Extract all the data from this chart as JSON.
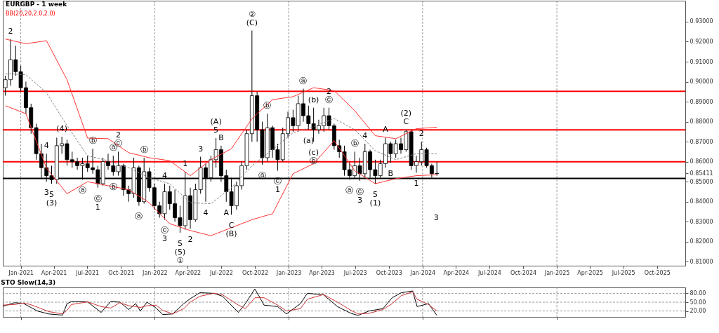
{
  "chart_data": [
    {
      "type": "candlestick",
      "title": "EURGBP - 1 week",
      "subtitle": "BB(20,20,2.0,2.0)",
      "x": [
        "2020-11-20",
        "2020-12-04",
        "2020-12-18",
        "2021-01-01",
        "2021-01-15",
        "2021-01-29",
        "2021-02-12",
        "2021-02-26",
        "2021-03-12",
        "2021-03-26",
        "2021-04-09",
        "2021-04-23",
        "2021-05-07",
        "2021-05-21",
        "2021-06-04",
        "2021-06-18",
        "2021-07-02",
        "2021-07-16",
        "2021-07-30",
        "2021-08-13",
        "2021-08-27",
        "2021-09-10",
        "2021-09-24",
        "2021-10-08",
        "2021-10-22",
        "2021-11-05",
        "2021-11-19",
        "2021-12-03",
        "2021-12-17",
        "2021-12-31",
        "2022-01-14",
        "2022-01-28",
        "2022-02-11",
        "2022-02-25",
        "2022-03-11",
        "2022-03-25",
        "2022-04-08",
        "2022-04-22",
        "2022-05-06",
        "2022-05-20",
        "2022-06-03",
        "2022-06-17",
        "2022-07-01",
        "2022-07-15",
        "2022-07-29",
        "2022-08-12",
        "2022-08-26",
        "2022-09-09",
        "2022-09-23",
        "2022-10-07",
        "2022-10-21",
        "2022-11-04",
        "2022-11-18",
        "2022-12-02",
        "2022-12-16",
        "2022-12-30",
        "2023-01-13",
        "2023-01-27",
        "2023-02-10",
        "2023-02-24",
        "2023-03-10",
        "2023-03-24",
        "2023-04-07",
        "2023-04-21",
        "2023-05-05",
        "2023-05-19",
        "2023-06-02",
        "2023-06-16",
        "2023-06-30",
        "2023-07-14",
        "2023-07-28",
        "2023-08-11",
        "2023-08-25",
        "2023-09-08",
        "2023-09-22",
        "2023-10-06",
        "2023-10-20",
        "2023-11-03",
        "2023-11-17",
        "2023-12-01",
        "2023-12-15",
        "2023-12-29",
        "2024-01-12",
        "2024-01-26",
        "2024-02-09"
      ],
      "ohlc": [
        [
          0.897,
          0.903,
          0.893,
          0.901
        ],
        [
          0.901,
          0.9213,
          0.898,
          0.911
        ],
        [
          0.911,
          0.918,
          0.903,
          0.905
        ],
        [
          0.905,
          0.908,
          0.895,
          0.897
        ],
        [
          0.897,
          0.9,
          0.884,
          0.887
        ],
        [
          0.887,
          0.889,
          0.874,
          0.877
        ],
        [
          0.877,
          0.879,
          0.861,
          0.864
        ],
        [
          0.864,
          0.869,
          0.852,
          0.857
        ],
        [
          0.857,
          0.864,
          0.85,
          0.853
        ],
        [
          0.853,
          0.858,
          0.849,
          0.851
        ],
        [
          0.851,
          0.872,
          0.849,
          0.868
        ],
        [
          0.868,
          0.8725,
          0.864,
          0.869
        ],
        [
          0.869,
          0.871,
          0.858,
          0.861
        ],
        [
          0.861,
          0.865,
          0.857,
          0.86
        ],
        [
          0.86,
          0.862,
          0.856,
          0.858
        ],
        [
          0.858,
          0.862,
          0.851,
          0.859
        ],
        [
          0.859,
          0.863,
          0.855,
          0.857
        ],
        [
          0.857,
          0.8665,
          0.854,
          0.856
        ],
        [
          0.856,
          0.858,
          0.847,
          0.849
        ],
        [
          0.849,
          0.862,
          0.848,
          0.86
        ],
        [
          0.86,
          0.864,
          0.856,
          0.858
        ],
        [
          0.858,
          0.863,
          0.853,
          0.855
        ],
        [
          0.855,
          0.865,
          0.853,
          0.858
        ],
        [
          0.858,
          0.859,
          0.843,
          0.846
        ],
        [
          0.846,
          0.848,
          0.84,
          0.844
        ],
        [
          0.844,
          0.862,
          0.842,
          0.857
        ],
        [
          0.857,
          0.858,
          0.838,
          0.84
        ],
        [
          0.84,
          0.862,
          0.839,
          0.855
        ],
        [
          0.855,
          0.857,
          0.845,
          0.847
        ],
        [
          0.847,
          0.849,
          0.836,
          0.838
        ],
        [
          0.838,
          0.84,
          0.832,
          0.834
        ],
        [
          0.834,
          0.849,
          0.831,
          0.845
        ],
        [
          0.845,
          0.848,
          0.836,
          0.839
        ],
        [
          0.839,
          0.846,
          0.83,
          0.832
        ],
        [
          0.832,
          0.838,
          0.8245,
          0.828
        ],
        [
          0.828,
          0.855,
          0.826,
          0.843
        ],
        [
          0.843,
          0.847,
          0.8265,
          0.831
        ],
        [
          0.831,
          0.849,
          0.83,
          0.846
        ],
        [
          0.846,
          0.8625,
          0.844,
          0.857
        ],
        [
          0.857,
          0.859,
          0.84,
          0.852
        ],
        [
          0.852,
          0.863,
          0.85,
          0.861
        ],
        [
          0.861,
          0.8718,
          0.857,
          0.866
        ],
        [
          0.866,
          0.868,
          0.85,
          0.853
        ],
        [
          0.853,
          0.856,
          0.84,
          0.845
        ],
        [
          0.845,
          0.852,
          0.8335,
          0.838
        ],
        [
          0.838,
          0.85,
          0.836,
          0.848
        ],
        [
          0.848,
          0.86,
          0.846,
          0.858
        ],
        [
          0.858,
          0.876,
          0.856,
          0.874
        ],
        [
          0.874,
          0.9256,
          0.87,
          0.893
        ],
        [
          0.893,
          0.895,
          0.87,
          0.876
        ],
        [
          0.876,
          0.88,
          0.8585,
          0.862
        ],
        [
          0.862,
          0.884,
          0.86,
          0.877
        ],
        [
          0.877,
          0.878,
          0.862,
          0.866
        ],
        [
          0.866,
          0.869,
          0.8555,
          0.861
        ],
        [
          0.861,
          0.877,
          0.86,
          0.874
        ],
        [
          0.874,
          0.885,
          0.872,
          0.882
        ],
        [
          0.882,
          0.886,
          0.875,
          0.878
        ],
        [
          0.878,
          0.893,
          0.876,
          0.889
        ],
        [
          0.889,
          0.8965,
          0.88,
          0.883
        ],
        [
          0.883,
          0.888,
          0.876,
          0.879
        ],
        [
          0.879,
          0.887,
          0.87,
          0.876
        ],
        [
          0.876,
          0.881,
          0.874,
          0.878
        ],
        [
          0.878,
          0.887,
          0.875,
          0.883
        ],
        [
          0.883,
          0.887,
          0.876,
          0.878
        ],
        [
          0.878,
          0.879,
          0.866,
          0.868
        ],
        [
          0.868,
          0.871,
          0.862,
          0.865
        ],
        [
          0.865,
          0.868,
          0.853,
          0.856
        ],
        [
          0.856,
          0.86,
          0.851,
          0.853
        ],
        [
          0.853,
          0.865,
          0.8515,
          0.858
        ],
        [
          0.858,
          0.862,
          0.8505,
          0.854
        ],
        [
          0.854,
          0.869,
          0.852,
          0.865
        ],
        [
          0.865,
          0.866,
          0.852,
          0.856
        ],
        [
          0.856,
          0.861,
          0.849,
          0.853
        ],
        [
          0.853,
          0.861,
          0.852,
          0.859
        ],
        [
          0.859,
          0.872,
          0.857,
          0.869
        ],
        [
          0.869,
          0.87,
          0.8595,
          0.864
        ],
        [
          0.864,
          0.871,
          0.862,
          0.869
        ],
        [
          0.869,
          0.872,
          0.864,
          0.866
        ],
        [
          0.866,
          0.876,
          0.865,
          0.875
        ],
        [
          0.875,
          0.876,
          0.856,
          0.858
        ],
        [
          0.858,
          0.863,
          0.8545,
          0.86
        ],
        [
          0.86,
          0.87,
          0.858,
          0.866
        ],
        [
          0.866,
          0.867,
          0.857,
          0.858
        ],
        [
          0.858,
          0.859,
          0.852,
          0.854
        ],
        [
          0.854,
          0.86,
          0.853,
          0.85411
        ]
      ],
      "series": [
        {
          "type": "line",
          "color": "#ff3333",
          "line_style": "solid",
          "x": [
            "2020-11-20",
            "2021-01-15",
            "2021-03-12",
            "2021-05-07",
            "2021-07-02",
            "2021-08-27",
            "2021-10-22",
            "2021-12-17",
            "2022-02-11",
            "2022-04-08",
            "2022-06-03",
            "2022-07-29",
            "2022-09-23",
            "2022-11-18",
            "2023-01-13",
            "2023-03-10",
            "2023-05-05",
            "2023-06-30",
            "2023-08-25",
            "2023-10-20",
            "2023-12-15",
            "2024-02-09"
          ],
          "values": [
            0.9213,
            0.919,
            0.9205,
            0.901,
            0.8718,
            0.8715,
            0.8645,
            0.862,
            0.8605,
            0.853,
            0.861,
            0.8665,
            0.8815,
            0.891,
            0.8925,
            0.897,
            0.8955,
            0.8855,
            0.873,
            0.8715,
            0.8765,
            0.8772
          ]
        },
        {
          "type": "line",
          "color": "#808080",
          "line_style": "dashed",
          "x": [
            "2020-11-20",
            "2021-01-15",
            "2021-03-12",
            "2021-05-07",
            "2021-07-02",
            "2021-08-27",
            "2021-10-22",
            "2021-12-17",
            "2022-02-11",
            "2022-04-08",
            "2022-06-03",
            "2022-07-29",
            "2022-09-23",
            "2022-11-18",
            "2023-01-13",
            "2023-03-10",
            "2023-05-05",
            "2023-06-30",
            "2023-08-25",
            "2023-10-20",
            "2023-12-15",
            "2024-02-09"
          ],
          "values": [
            0.904,
            0.9035,
            0.8945,
            0.878,
            0.863,
            0.8605,
            0.857,
            0.852,
            0.849,
            0.8395,
            0.839,
            0.847,
            0.858,
            0.866,
            0.8745,
            0.8775,
            0.8816,
            0.876,
            0.8655,
            0.861,
            0.864,
            0.864
          ]
        },
        {
          "type": "line",
          "color": "#ff3333",
          "line_style": "solid",
          "x": [
            "2020-11-20",
            "2021-01-15",
            "2021-03-12",
            "2021-05-07",
            "2021-07-02",
            "2021-08-27",
            "2021-10-22",
            "2021-12-17",
            "2022-02-11",
            "2022-04-08",
            "2022-06-03",
            "2022-07-29",
            "2022-09-23",
            "2022-11-18",
            "2023-01-13",
            "2023-03-10",
            "2023-05-05",
            "2023-06-30",
            "2023-08-25",
            "2023-10-20",
            "2023-12-15",
            "2024-02-09"
          ],
          "values": [
            0.888,
            0.884,
            0.8568,
            0.844,
            0.85,
            0.848,
            0.846,
            0.8395,
            0.829,
            0.8256,
            0.823,
            0.827,
            0.831,
            0.834,
            0.854,
            0.859,
            0.8705,
            0.8555,
            0.849,
            0.8515,
            0.853,
            0.8535
          ]
        }
      ],
      "xlim": [
        "2020-11-13",
        "2025-12-17"
      ],
      "ylim": [
        0.808,
        0.9405
      ],
      "xticks": [
        {
          "value": "2021-01-01",
          "label": "Jan-2021"
        },
        {
          "value": "2021-04-01",
          "label": "Apr-2021"
        },
        {
          "value": "2021-07-01",
          "label": "Jul-2021"
        },
        {
          "value": "2021-10-01",
          "label": "Oct-2021"
        },
        {
          "value": "2022-01-01",
          "label": "Jan-2022"
        },
        {
          "value": "2022-04-01",
          "label": "Apr-2022"
        },
        {
          "value": "2022-07-01",
          "label": "Jul-2022"
        },
        {
          "value": "2022-10-01",
          "label": "Oct-2022"
        },
        {
          "value": "2023-01-01",
          "label": "Jan-2023"
        },
        {
          "value": "2023-04-01",
          "label": "Apr-2023"
        },
        {
          "value": "2023-07-01",
          "label": "Jul-2023"
        },
        {
          "value": "2023-10-01",
          "label": "Oct-2023"
        },
        {
          "value": "2024-01-01",
          "label": "Jan-2024"
        },
        {
          "value": "2024-04-01",
          "label": "Apr-2024"
        },
        {
          "value": "2024-07-01",
          "label": "Jul-2024"
        },
        {
          "value": "2024-10-01",
          "label": "Oct-2024"
        },
        {
          "value": "2025-01-01",
          "label": "Jan-2025"
        },
        {
          "value": "2025-04-01",
          "label": "Apr-2025"
        },
        {
          "value": "2025-07-01",
          "label": "Jul-2025"
        },
        {
          "value": "2025-10-01",
          "label": "Oct-2025"
        }
      ],
      "yticks": [
        {
          "value": 0.81,
          "label": "0.81000"
        },
        {
          "value": 0.82,
          "label": "0.82000"
        },
        {
          "value": 0.83,
          "label": "0.83000"
        },
        {
          "value": 0.84,
          "label": "0.84000"
        },
        {
          "value": 0.85,
          "label": "0.85000"
        },
        {
          "value": 0.85411,
          "label": "0.85411"
        },
        {
          "value": 0.86,
          "label": "0.86000"
        },
        {
          "value": 0.87,
          "label": "0.87000"
        },
        {
          "value": 0.88,
          "label": "0.88000"
        },
        {
          "value": 0.89,
          "label": "0.89000"
        },
        {
          "value": 0.9,
          "label": "0.90000"
        },
        {
          "value": 0.91,
          "label": "0.91000"
        },
        {
          "value": 0.92,
          "label": "0.92000"
        },
        {
          "value": 0.93,
          "label": "0.93000"
        }
      ],
      "ref_lines": [
        {
          "axis": "y",
          "value": 0.8952,
          "color": "#ff0000",
          "line_style": "solid"
        },
        {
          "axis": "y",
          "value": 0.8759,
          "color": "#ff0000",
          "line_style": "solid"
        },
        {
          "axis": "y",
          "value": 0.86,
          "color": "#ff0000",
          "line_style": "solid"
        },
        {
          "axis": "y",
          "value": 0.8516,
          "color": "#000000",
          "line_style": "solid"
        },
        {
          "axis": "x",
          "value": "2021-01-01",
          "color": "#808080",
          "line_style": "dashed"
        },
        {
          "axis": "x",
          "value": "2022-01-01",
          "color": "#808080",
          "line_style": "dashed"
        },
        {
          "axis": "x",
          "value": "2023-01-01",
          "color": "#808080",
          "line_style": "dashed"
        },
        {
          "axis": "x",
          "value": "2024-01-01",
          "color": "#808080",
          "line_style": "dashed"
        },
        {
          "axis": "x",
          "value": "2025-01-01",
          "color": "#808080",
          "line_style": "dashed"
        }
      ],
      "annotations": [
        {
          "text": "2",
          "x": "2020-12-04",
          "y": 0.9213
        },
        {
          "text": "(4)",
          "x": "2021-04-23",
          "y": 0.8725
        },
        {
          "text": "4",
          "x": "2021-03-12",
          "y": 0.864
        },
        {
          "text": "3",
          "x": "2021-03-12",
          "y": 0.85
        },
        {
          "text": "5",
          "x": "2021-03-26",
          "y": 0.849
        },
        {
          "text": "(3)",
          "x": "2021-03-26",
          "y": 0.849
        },
        {
          "text": "ⓐ",
          "x": "2021-06-18",
          "y": 0.851
        },
        {
          "text": "ⓑ",
          "x": "2021-07-16",
          "y": 0.8665
        },
        {
          "text": "ⓒ",
          "x": "2021-07-30",
          "y": 0.847
        },
        {
          "text": "1",
          "x": "2021-07-30",
          "y": 0.847
        },
        {
          "text": "ⓐ",
          "x": "2021-09-10",
          "y": 0.863
        },
        {
          "text": "ⓑ",
          "x": "2021-09-10",
          "y": 0.853
        },
        {
          "text": "ⓒ",
          "x": "2021-09-24",
          "y": 0.865
        },
        {
          "text": "2",
          "x": "2021-09-24",
          "y": 0.865
        },
        {
          "text": "ⓐ",
          "x": "2021-11-19",
          "y": 0.838
        },
        {
          "text": "ⓑ",
          "x": "2021-12-03",
          "y": 0.862
        },
        {
          "text": "ⓒ",
          "x": "2022-01-28",
          "y": 0.831
        },
        {
          "text": "3",
          "x": "2022-01-28",
          "y": 0.831
        },
        {
          "text": "4",
          "x": "2022-01-28",
          "y": 0.849
        },
        {
          "text": "5",
          "x": "2022-03-11",
          "y": 0.8245
        },
        {
          "text": "(5)",
          "x": "2022-03-11",
          "y": 0.8245
        },
        {
          "text": "①",
          "x": "2022-03-11",
          "y": 0.8245
        },
        {
          "text": "1",
          "x": "2022-03-25",
          "y": 0.855
        },
        {
          "text": "2",
          "x": "2022-04-08",
          "y": 0.8265
        },
        {
          "text": "3",
          "x": "2022-05-06",
          "y": 0.8625
        },
        {
          "text": "4",
          "x": "2022-05-20",
          "y": 0.84
        },
        {
          "text": "5",
          "x": "2022-06-17",
          "y": 0.8718
        },
        {
          "text": "(A)",
          "x": "2022-06-17",
          "y": 0.8718
        },
        {
          "text": "B",
          "x": "2022-07-01",
          "y": 0.868
        },
        {
          "text": "A",
          "x": "2022-07-15",
          "y": 0.84
        },
        {
          "text": "C",
          "x": "2022-07-29",
          "y": 0.8335
        },
        {
          "text": "(B)",
          "x": "2022-07-29",
          "y": 0.8335
        },
        {
          "text": "(C)",
          "x": "2022-09-23",
          "y": 0.9256
        },
        {
          "text": "②",
          "x": "2022-09-23",
          "y": 0.9256
        },
        {
          "text": "ⓐ",
          "x": "2022-10-21",
          "y": 0.8585
        },
        {
          "text": "ⓑ",
          "x": "2022-11-04",
          "y": 0.884
        },
        {
          "text": "ⓒ",
          "x": "2022-12-02",
          "y": 0.8555
        },
        {
          "text": "1",
          "x": "2022-12-02",
          "y": 0.8555
        },
        {
          "text": "ⓐ",
          "x": "2023-02-10",
          "y": 0.8965
        },
        {
          "text": "(a)",
          "x": "2023-02-24",
          "y": 0.876
        },
        {
          "text": "(b)",
          "x": "2023-03-10",
          "y": 0.887
        },
        {
          "text": "(c)",
          "x": "2023-03-10",
          "y": 0.87
        },
        {
          "text": "ⓑ",
          "x": "2023-03-10",
          "y": 0.87
        },
        {
          "text": "ⓒ",
          "x": "2023-04-21",
          "y": 0.887
        },
        {
          "text": "2",
          "x": "2023-04-21",
          "y": 0.887
        },
        {
          "text": "ⓐ",
          "x": "2023-06-16",
          "y": 0.851
        },
        {
          "text": "ⓑ",
          "x": "2023-06-30",
          "y": 0.865
        },
        {
          "text": "4",
          "x": "2023-07-28",
          "y": 0.869
        },
        {
          "text": "ⓒ",
          "x": "2023-07-14",
          "y": 0.8505
        },
        {
          "text": "3",
          "x": "2023-07-14",
          "y": 0.8505
        },
        {
          "text": "5",
          "x": "2023-08-25",
          "y": 0.849
        },
        {
          "text": "(1)",
          "x": "2023-08-25",
          "y": 0.849
        },
        {
          "text": "A",
          "x": "2023-09-22",
          "y": 0.872
        },
        {
          "text": "B",
          "x": "2023-10-06",
          "y": 0.8595
        },
        {
          "text": "C",
          "x": "2023-11-17",
          "y": 0.876
        },
        {
          "text": "(2)",
          "x": "2023-11-17",
          "y": 0.876
        },
        {
          "text": "1",
          "x": "2023-12-15",
          "y": 0.8545
        },
        {
          "text": "2",
          "x": "2023-12-29",
          "y": 0.87
        },
        "3"
      ]
    },
    {
      "type": "line",
      "title": "STO Slow(14,3)",
      "tick_labels": "y",
      "series": [
        {
          "color": "#000000",
          "x": [
            "2020-11-13",
            "2020-12-15",
            "2021-01-08",
            "2021-01-27",
            "2021-02-15",
            "2021-03-18",
            "2021-04-25",
            "2021-05-07",
            "2021-05-19",
            "2021-07-02",
            "2021-08-08",
            "2021-09-03",
            "2021-09-28",
            "2021-10-22",
            "2021-11-10",
            "2021-11-23",
            "2021-12-11",
            "2022-01-05",
            "2022-01-23",
            "2022-02-19",
            "2022-03-21",
            "2022-04-08",
            "2022-05-04",
            "2022-06-11",
            "2022-07-05",
            "2022-08-17",
            "2022-09-05",
            "2022-10-01",
            "2022-10-26",
            "2022-12-02",
            "2022-12-26",
            "2023-02-02",
            "2023-02-21",
            "2023-04-06",
            "2023-05-14",
            "2023-06-20",
            "2023-07-09",
            "2023-08-08",
            "2023-09-15",
            "2023-10-10",
            "2023-11-04",
            "2023-12-05",
            "2023-12-17",
            "2024-01-17",
            "2024-02-09"
          ],
          "values": [
            36,
            48,
            46,
            33,
            20,
            10,
            6,
            45,
            52,
            51,
            15,
            52,
            50,
            25,
            45,
            20,
            50,
            30,
            8,
            10,
            45,
            62,
            82,
            80,
            70,
            15,
            45,
            95,
            40,
            35,
            10,
            45,
            80,
            75,
            35,
            12,
            5,
            20,
            28,
            65,
            82,
            88,
            35,
            45,
            5
          ]
        },
        {
          "color": "#cc3333",
          "x": [
            "2020-11-13",
            "2020-12-15",
            "2021-01-08",
            "2021-01-27",
            "2021-02-15",
            "2021-03-18",
            "2021-04-25",
            "2021-05-07",
            "2021-05-19",
            "2021-07-02",
            "2021-08-08",
            "2021-09-03",
            "2021-09-28",
            "2021-10-22",
            "2021-11-10",
            "2021-11-23",
            "2021-12-11",
            "2022-01-05",
            "2022-01-23",
            "2022-02-19",
            "2022-03-21",
            "2022-04-08",
            "2022-05-04",
            "2022-06-11",
            "2022-07-05",
            "2022-08-17",
            "2022-09-05",
            "2022-10-01",
            "2022-10-26",
            "2022-12-02",
            "2022-12-26",
            "2023-02-02",
            "2023-02-21",
            "2023-04-06",
            "2023-05-14",
            "2023-06-20",
            "2023-07-09",
            "2023-08-08",
            "2023-09-15",
            "2023-10-10",
            "2023-11-04",
            "2023-12-05",
            "2023-12-17",
            "2024-01-17",
            "2024-02-09"
          ],
          "values": [
            40,
            42,
            47,
            42,
            33,
            18,
            10,
            22,
            42,
            51,
            35,
            30,
            48,
            38,
            35,
            32,
            38,
            40,
            22,
            10,
            28,
            50,
            70,
            80,
            75,
            40,
            28,
            65,
            65,
            40,
            20,
            28,
            60,
            76,
            50,
            22,
            10,
            12,
            25,
            45,
            72,
            85,
            60,
            42,
            20
          ]
        }
      ],
      "xlim": [
        "2020-11-13",
        "2025-12-17"
      ],
      "ylim": [
        0,
        100
      ],
      "xticks": [
        {
          "value": "2021-01-01",
          "label": null
        },
        {
          "value": "2022-01-01",
          "label": null
        },
        {
          "value": "2023-01-01",
          "label": null
        },
        {
          "value": "2024-01-01",
          "label": null
        },
        {
          "value": "2025-01-01",
          "label": null
        }
      ],
      "yticks": [
        {
          "value": 20,
          "label": "20.00"
        },
        {
          "value": 50,
          "label": "50.00"
        },
        {
          "value": 80,
          "label": "80.00"
        }
      ],
      "ref_lines": [
        {
          "axis": "y",
          "value": 80,
          "color": "#808080",
          "line_style": "dashed"
        },
        {
          "axis": "y",
          "value": 50,
          "color": "#808080",
          "line_style": "dashed"
        },
        {
          "axis": "y",
          "value": 20,
          "color": "#808080",
          "line_style": "dashed"
        },
        {
          "axis": "x",
          "value": "2021-01-01",
          "color": "#808080",
          "line_style": "dashed"
        },
        {
          "axis": "x",
          "value": "2022-01-01",
          "color": "#808080",
          "line_style": "dashed"
        },
        {
          "axis": "x",
          "value": "2023-01-01",
          "color": "#808080",
          "line_style": "dashed"
        },
        {
          "axis": "x",
          "value": "2024-01-01",
          "color": "#808080",
          "line_style": "dashed"
        },
        {
          "axis": "x",
          "value": "2025-01-01",
          "color": "#808080",
          "line_style": "dashed"
        }
      ]
    }
  ]
}
